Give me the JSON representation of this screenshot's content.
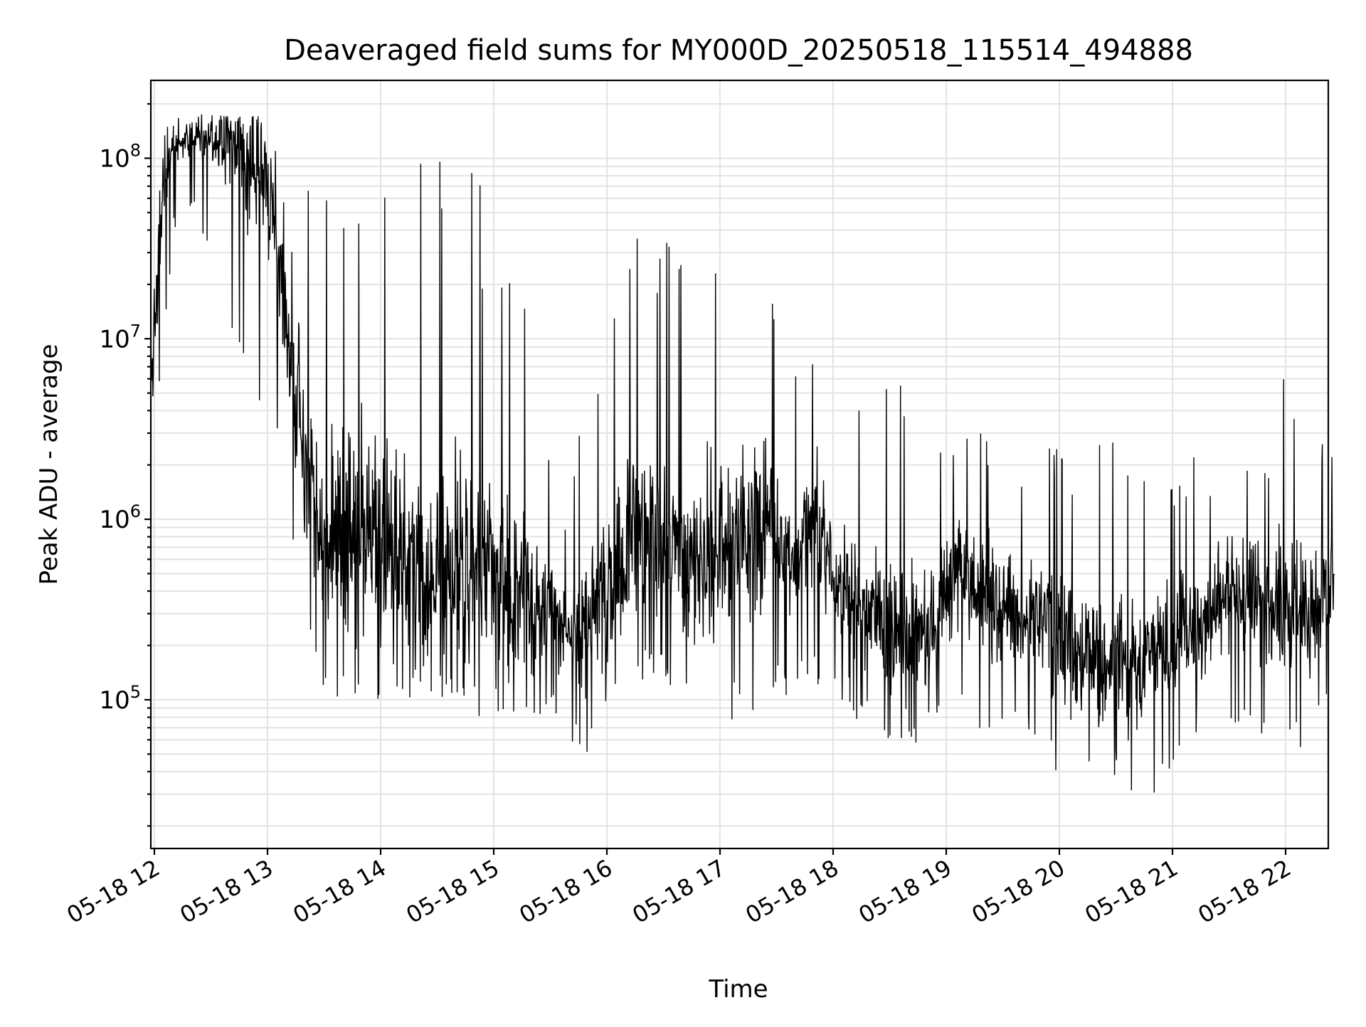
{
  "chart_data": {
    "type": "line",
    "title": "Deaveraged field sums for MY000D_20250518_115514_494888",
    "xlabel": "Time",
    "ylabel": "Peak ADU - average",
    "x_tick_labels": [
      "05-18 12",
      "05-18 13",
      "05-18 14",
      "05-18 15",
      "05-18 16",
      "05-18 17",
      "05-18 18",
      "05-18 19",
      "05-18 20",
      "05-18 21",
      "05-18 22"
    ],
    "y_scale": "log",
    "y_tick_labels": [
      {
        "base": "10",
        "exp": "5"
      },
      {
        "base": "10",
        "exp": "6"
      },
      {
        "base": "10",
        "exp": "7"
      },
      {
        "base": "10",
        "exp": "8"
      }
    ],
    "xlim": [
      "2025-05-18 11:58",
      "2025-05-18 22:26"
    ],
    "ylim": [
      15000,
      270000000
    ],
    "grid": true,
    "legend": "none",
    "colors": {
      "series": "#000000",
      "grid": "#e3e3e3",
      "background": "#ffffff"
    },
    "series": [
      {
        "x": [
          "2025-05-18 11:58",
          "2025-05-18 12:05",
          "2025-05-18 12:10",
          "2025-05-18 12:20",
          "2025-05-18 12:30",
          "2025-05-18 12:40",
          "2025-05-18 12:50",
          "2025-05-18 13:00",
          "2025-05-18 13:10",
          "2025-05-18 13:20",
          "2025-05-18 13:30",
          "2025-05-18 13:40",
          "2025-05-18 13:50",
          "2025-05-18 14:00",
          "2025-05-18 14:10",
          "2025-05-18 14:20",
          "2025-05-18 14:30",
          "2025-05-18 14:40",
          "2025-05-18 14:50",
          "2025-05-18 15:00",
          "2025-05-18 15:10",
          "2025-05-18 15:20",
          "2025-05-18 15:30",
          "2025-05-18 15:40",
          "2025-05-18 15:50",
          "2025-05-18 16:00",
          "2025-05-18 16:10",
          "2025-05-18 16:20",
          "2025-05-18 16:30",
          "2025-05-18 16:40",
          "2025-05-18 16:50",
          "2025-05-18 17:00",
          "2025-05-18 17:10",
          "2025-05-18 17:20",
          "2025-05-18 17:30",
          "2025-05-18 17:40",
          "2025-05-18 17:50",
          "2025-05-18 18:00",
          "2025-05-18 18:10",
          "2025-05-18 18:20",
          "2025-05-18 18:30",
          "2025-05-18 18:40",
          "2025-05-18 18:50",
          "2025-05-18 19:00",
          "2025-05-18 19:10",
          "2025-05-18 19:20",
          "2025-05-18 19:30",
          "2025-05-18 19:40",
          "2025-05-18 19:50",
          "2025-05-18 20:00",
          "2025-05-18 20:10",
          "2025-05-18 20:20",
          "2025-05-18 20:30",
          "2025-05-18 20:40",
          "2025-05-18 20:50",
          "2025-05-18 21:00",
          "2025-05-18 21:10",
          "2025-05-18 21:20",
          "2025-05-18 21:30",
          "2025-05-18 21:40",
          "2025-05-18 21:50",
          "2025-05-18 22:00",
          "2025-05-18 22:10",
          "2025-05-18 22:20",
          "2025-05-18 22:26"
        ],
        "median": [
          5000000,
          80000000,
          120000000,
          130000000,
          130000000,
          120000000,
          100000000,
          70000000,
          15000000,
          2000000,
          800000,
          800000,
          900000,
          800000,
          700000,
          600000,
          500000,
          500000,
          500000,
          400000,
          400000,
          350000,
          300000,
          250000,
          250000,
          400000,
          700000,
          900000,
          800000,
          700000,
          600000,
          700000,
          800000,
          900000,
          700000,
          700000,
          1000000,
          500000,
          350000,
          300000,
          250000,
          200000,
          250000,
          400000,
          500000,
          350000,
          300000,
          300000,
          300000,
          200000,
          200000,
          150000,
          150000,
          150000,
          200000,
          200000,
          250000,
          300000,
          400000,
          400000,
          350000,
          300000,
          300000,
          350000,
          500000
        ],
        "low": [
          3000000,
          8000000,
          40000000,
          50000000,
          30000000,
          8000000,
          3000000,
          4000000,
          800000,
          150000,
          100000,
          90000,
          80000,
          90000,
          100000,
          100000,
          100000,
          90000,
          50000,
          70000,
          80000,
          80000,
          80000,
          60000,
          50000,
          90000,
          120000,
          130000,
          120000,
          90000,
          90000,
          80000,
          70000,
          80000,
          100000,
          100000,
          120000,
          90000,
          80000,
          70000,
          60000,
          50000,
          60000,
          70000,
          70000,
          60000,
          60000,
          70000,
          60000,
          30000,
          30000,
          30000,
          25000,
          23000,
          25000,
          40000,
          40000,
          50000,
          60000,
          60000,
          60000,
          50000,
          50000,
          70000,
          100000
        ],
        "high": [
          130000000,
          170000000,
          175000000,
          175000000,
          175000000,
          170000000,
          170000000,
          175000000,
          110000000,
          90000000,
          100000000,
          110000000,
          120000000,
          160000000,
          140000000,
          110000000,
          100000000,
          90000000,
          100000000,
          30000000,
          80000000,
          10000000,
          2000000,
          1000000,
          8000000,
          12000000,
          35000000,
          40000000,
          40000000,
          35000000,
          30000000,
          40000000,
          20000000,
          40000000,
          20000000,
          7000000,
          8000000,
          4000000,
          15000000,
          4000000,
          15000000,
          3000000,
          3000000,
          3000000,
          3000000,
          3000000,
          3000000,
          2500000,
          2500000,
          2500000,
          2500000,
          2500000,
          3500000,
          2500000,
          2000000,
          2000000,
          2500000,
          2200000,
          2400000,
          2400000,
          2400000,
          8000000,
          4000000,
          2700000,
          3000000
        ]
      }
    ]
  }
}
